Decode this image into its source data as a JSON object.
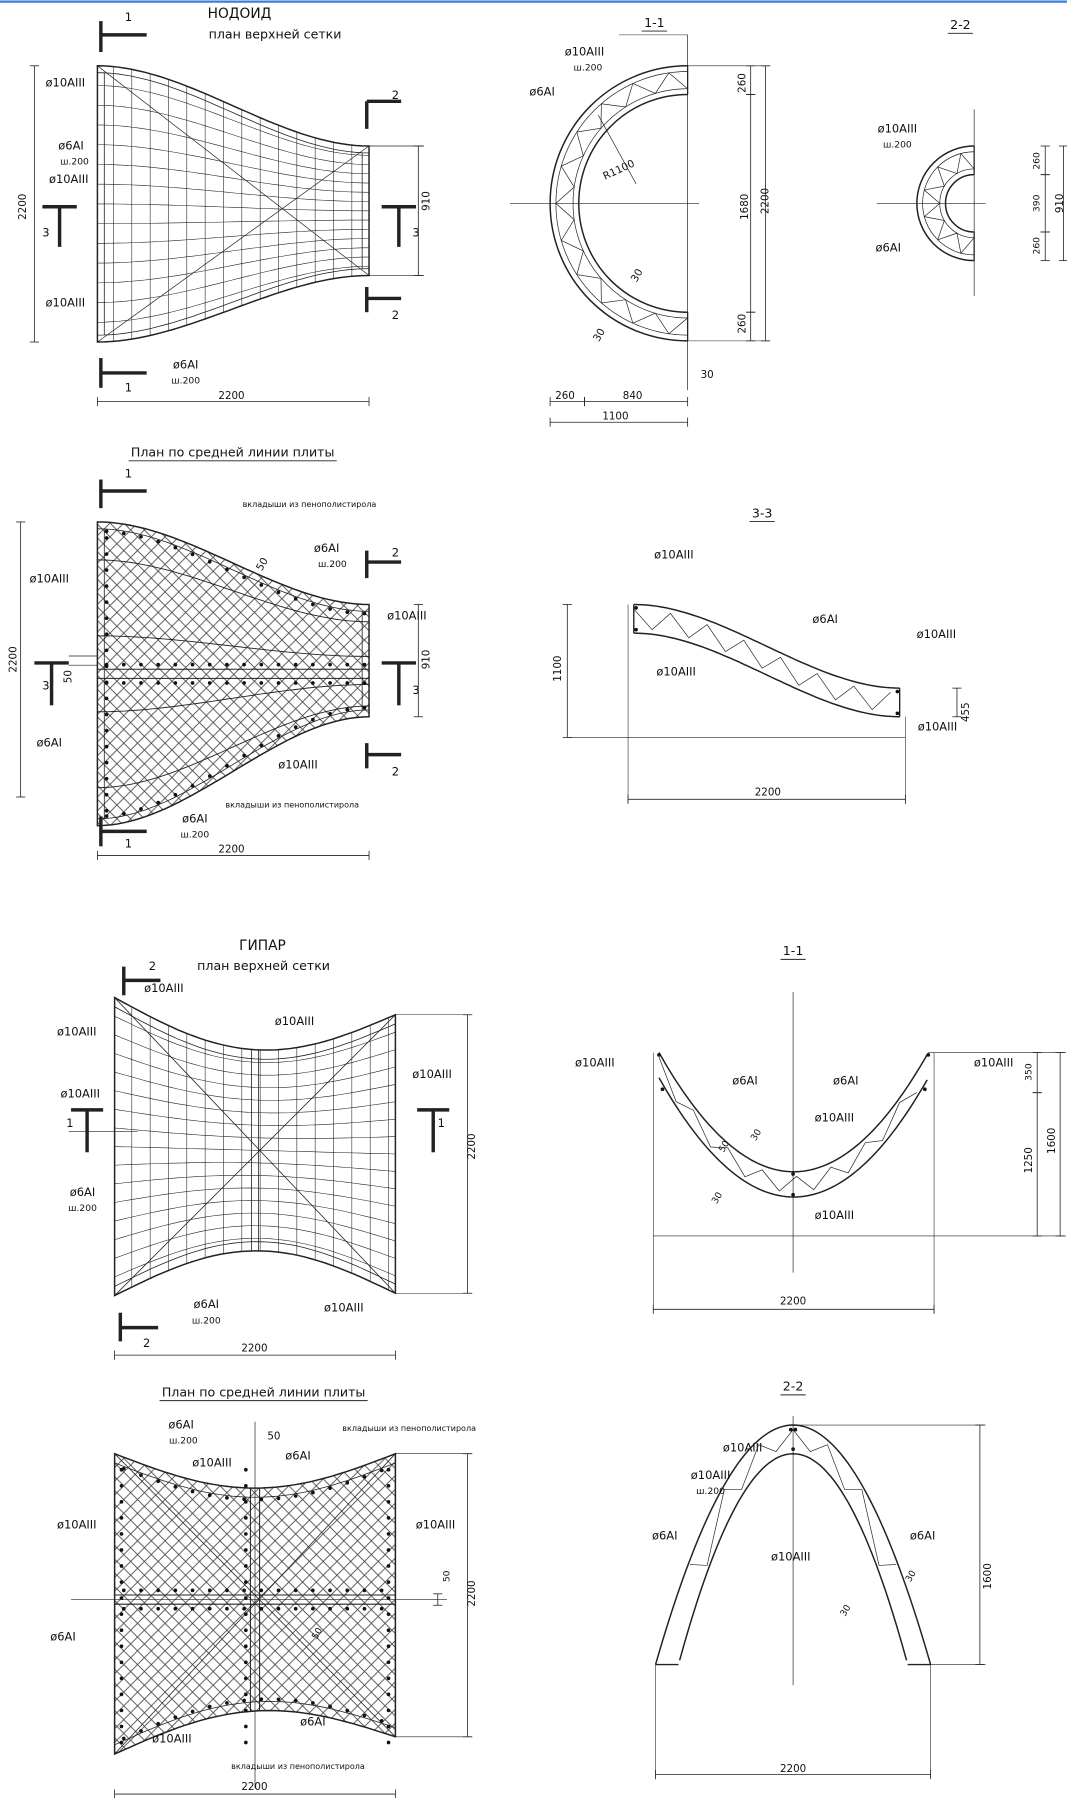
{
  "drawings": [
    {
      "title": "НОДОИД",
      "subtitle": "план верхней сетки",
      "labels": [
        "1",
        "2",
        "ø10AIII",
        "ø6AI",
        "ш.200",
        "ø10AIII",
        "2200",
        "3",
        "910",
        "3",
        "ø10AIII",
        "2",
        "ø6AI",
        "ш.200",
        "1",
        "2200"
      ]
    },
    {
      "title": "1-1",
      "labels": [
        "ø10AIII",
        "ш.200",
        "ø6AI",
        "260",
        "R1100",
        "1680",
        "2200",
        "30",
        "260",
        "30",
        "30",
        "260",
        "840",
        "1100"
      ]
    },
    {
      "title": "2-2",
      "labels": [
        "ø10AIII",
        "ш.200",
        "260",
        "390",
        "910",
        "260",
        "ø6AI"
      ]
    },
    {
      "title": "План по средней линии плиты",
      "labels": [
        "1",
        "вкладыши из пенополистирола",
        "ø6AI",
        "ш.200",
        "50",
        "2",
        "ø10AIII",
        "ø10AIII",
        "2200",
        "50",
        "910",
        "3",
        "3",
        "ø6AI",
        "ø10AIII",
        "2",
        "вкладыши из пенополистирола",
        "ø6AI",
        "ш.200",
        "1",
        "2200"
      ]
    },
    {
      "title": "3-3",
      "labels": [
        "ø10AIII",
        "ø6AI",
        "ø10AIII",
        "1100",
        "ø10AIII",
        "455",
        "ø10AIII",
        "2200"
      ]
    },
    {
      "title": "ГИПАР",
      "subtitle": "план верхней сетки",
      "labels": [
        "2",
        "ø10AIII",
        "ø10AIII",
        "ø10AIII",
        "ø10AIII",
        "ø10AIII",
        "1",
        "1",
        "2200",
        "ø6AI",
        "ш.200",
        "ø6AI",
        "ш.200",
        "ø10AIII",
        "2",
        "2200"
      ]
    },
    {
      "title": "1-1",
      "labels": [
        "ø10AIII",
        "ø10AIII",
        "350",
        "ø6AI",
        "ø6AI",
        "ø10AIII",
        "30",
        "50",
        "1600",
        "1250",
        "30",
        "ø10AIII",
        "2200"
      ]
    },
    {
      "title": "План по средней линии плиты",
      "labels": [
        "ø6AI",
        "ш.200",
        "50",
        "вкладыши из пенополистирола",
        "ø6AI",
        "ø10AIII",
        "ø10AIII",
        "ø10AIII",
        "50",
        "2200",
        "50",
        "ø6AI",
        "ø6AI",
        "ø10AIII",
        "вкладыши из пенополистирола",
        "2200"
      ]
    },
    {
      "title": "2-2",
      "labels": [
        "ø10AIII",
        "ø10AIII",
        "ш.200",
        "ø6AI",
        "ø6AI",
        "ø10AIII",
        "30",
        "1600",
        "30",
        "2200"
      ]
    }
  ]
}
